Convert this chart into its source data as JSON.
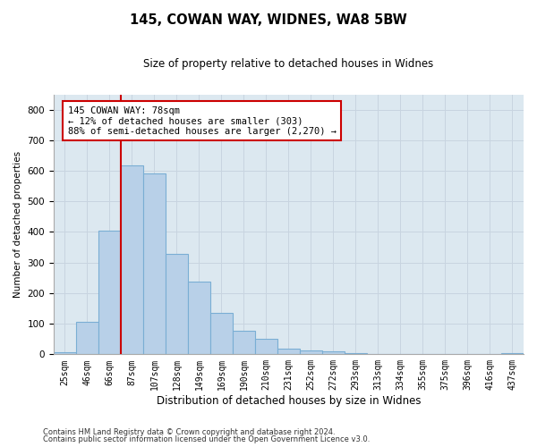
{
  "title1": "145, COWAN WAY, WIDNES, WA8 5BW",
  "title2": "Size of property relative to detached houses in Widnes",
  "xlabel": "Distribution of detached houses by size in Widnes",
  "ylabel": "Number of detached properties",
  "footnote1": "Contains HM Land Registry data © Crown copyright and database right 2024.",
  "footnote2": "Contains public sector information licensed under the Open Government Licence v3.0.",
  "bar_labels": [
    "25sqm",
    "46sqm",
    "66sqm",
    "87sqm",
    "107sqm",
    "128sqm",
    "149sqm",
    "169sqm",
    "190sqm",
    "210sqm",
    "231sqm",
    "252sqm",
    "272sqm",
    "293sqm",
    "313sqm",
    "334sqm",
    "355sqm",
    "375sqm",
    "396sqm",
    "416sqm",
    "437sqm"
  ],
  "bar_heights": [
    7,
    107,
    403,
    617,
    590,
    328,
    237,
    135,
    78,
    50,
    18,
    13,
    10,
    5,
    2,
    0,
    0,
    0,
    0,
    0,
    5
  ],
  "bar_color": "#b8d0e8",
  "bar_edge_color": "#7aaed4",
  "vline_color": "#cc0000",
  "annotation_text": "145 COWAN WAY: 78sqm\n← 12% of detached houses are smaller (303)\n88% of semi-detached houses are larger (2,270) →",
  "annotation_box_facecolor": "#ffffff",
  "annotation_box_edgecolor": "#cc0000",
  "ylim": [
    0,
    850
  ],
  "yticks": [
    0,
    100,
    200,
    300,
    400,
    500,
    600,
    700,
    800
  ],
  "grid_color": "#c8d4e0",
  "bg_color": "#dce8f0",
  "fig_width": 6.0,
  "fig_height": 5.0,
  "dpi": 100
}
